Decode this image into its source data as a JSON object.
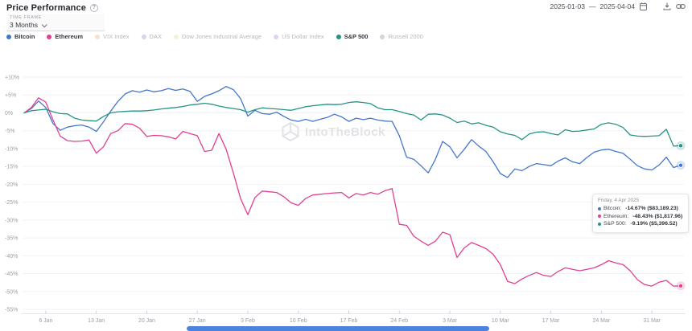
{
  "header": {
    "title": "Price Performance",
    "info_glyph": "?",
    "date_start": "2025-01-03",
    "date_separator": "—",
    "date_end": "2025-04-04"
  },
  "timeframe": {
    "label": "TIME FRAME",
    "value": "3 Months"
  },
  "legend": [
    {
      "name": "Bitcoin",
      "color": "#4477cc",
      "active": true
    },
    {
      "name": "Ethereum",
      "color": "#e23f92",
      "active": true
    },
    {
      "name": "VIX Index",
      "color": "#f0c9a0",
      "active": false
    },
    {
      "name": "DAX",
      "color": "#beb3d2",
      "active": false
    },
    {
      "name": "Dow Jones Industrial Average",
      "color": "#ece5ab",
      "active": false
    },
    {
      "name": "US Dollar Index",
      "color": "#cbadda",
      "active": false
    },
    {
      "name": "S&P 500",
      "color": "#269485",
      "active": true,
      "bold": true
    },
    {
      "name": "Russell 2000",
      "color": "#b3afbb",
      "active": false
    }
  ],
  "watermark": {
    "text": "IntoTheBlock"
  },
  "tooltip": {
    "title": "Friday, 4 Apr 2025",
    "rows": [
      {
        "name": "Bitcoin",
        "value": "-14.67% ($83,189.23)",
        "color": "#4477cc"
      },
      {
        "name": "Ethereum",
        "value": "-48.43% ($1,817.96)",
        "color": "#e23f92"
      },
      {
        "name": "S&P 500",
        "value": "-9.19% ($5,396.52)",
        "color": "#269485"
      }
    ]
  },
  "chart_data": {
    "type": "line",
    "title": "Price Performance",
    "x_unit": "days since 2025-01-03",
    "x_max": 91,
    "ylim": [
      -55,
      10
    ],
    "y_step": 5,
    "grid": true,
    "x_ticks": [
      {
        "label": "6 Jan",
        "day": 3
      },
      {
        "label": "13 Jan",
        "day": 10
      },
      {
        "label": "20 Jan",
        "day": 17
      },
      {
        "label": "27 Jan",
        "day": 24
      },
      {
        "label": "3 Feb",
        "day": 31
      },
      {
        "label": "10 Feb",
        "day": 38
      },
      {
        "label": "17 Feb",
        "day": 45
      },
      {
        "label": "24 Feb",
        "day": 52
      },
      {
        "label": "3 Mar",
        "day": 59
      },
      {
        "label": "10 Mar",
        "day": 66
      },
      {
        "label": "17 Mar",
        "day": 73
      },
      {
        "label": "24 Mar",
        "day": 80
      },
      {
        "label": "31 Mar",
        "day": 87
      }
    ],
    "series": [
      {
        "name": "Bitcoin",
        "color": "#4477cc",
        "values": [
          0,
          1.2,
          3.3,
          1.5,
          -3.0,
          -4.9,
          -4.0,
          -3.6,
          -3.4,
          -4.0,
          -5.2,
          -2.5,
          0.5,
          3.2,
          5.3,
          6.2,
          5.8,
          6.4,
          5.9,
          6.2,
          6.8,
          6.3,
          6.7,
          6.0,
          3.2,
          4.6,
          5.3,
          6.2,
          7.4,
          6.5,
          4.0,
          -0.9,
          0.7,
          -0.2,
          -0.4,
          0.2,
          -1.0,
          -2.0,
          -2.4,
          -1.8,
          -2.4,
          -1.8,
          -1.3,
          -0.4,
          -1.1,
          -2.4,
          -1.5,
          -1.9,
          -1.5,
          -2.0,
          -2.3,
          -2.4,
          -6.4,
          -12.4,
          -13.0,
          -14.8,
          -16.8,
          -13.0,
          -8.0,
          -9.5,
          -12.6,
          -10.2,
          -7.5,
          -9.3,
          -10.8,
          -13.7,
          -17.0,
          -18.1,
          -15.7,
          -16.2,
          -15.0,
          -14.2,
          -14.5,
          -14.8,
          -13.5,
          -12.6,
          -13.7,
          -14.2,
          -12.5,
          -11.0,
          -10.4,
          -10.2,
          -10.8,
          -11.3,
          -13.0,
          -14.8,
          -15.7,
          -16.0,
          -14.6,
          -12.4,
          -15.3,
          -14.67
        ]
      },
      {
        "name": "Ethereum",
        "color": "#e23f92",
        "values": [
          0,
          1.5,
          4.2,
          3.0,
          -2.0,
          -6.5,
          -7.8,
          -8.0,
          -7.9,
          -7.6,
          -11.3,
          -9.5,
          -5.8,
          -5.0,
          -3.0,
          -3.2,
          -4.3,
          -6.6,
          -6.3,
          -6.4,
          -6.7,
          -7.3,
          -5.2,
          -5.8,
          -6.4,
          -10.8,
          -10.5,
          -5.8,
          -10.2,
          -16.8,
          -24.0,
          -28.5,
          -23.7,
          -21.9,
          -22.1,
          -22.3,
          -23.5,
          -25.2,
          -25.9,
          -24.0,
          -23.0,
          -22.8,
          -22.6,
          -22.4,
          -22.3,
          -23.8,
          -22.6,
          -23.0,
          -22.3,
          -22.8,
          -21.8,
          -21.2,
          -31.2,
          -31.5,
          -34.5,
          -35.9,
          -37.1,
          -35.9,
          -33.4,
          -34.1,
          -40.5,
          -37.8,
          -36.3,
          -37.1,
          -38.0,
          -39.6,
          -42.5,
          -47.2,
          -47.8,
          -46.5,
          -45.5,
          -44.7,
          -45.5,
          -45.8,
          -44.4,
          -43.4,
          -43.8,
          -44.2,
          -43.8,
          -43.4,
          -42.5,
          -41.4,
          -42.0,
          -42.5,
          -44.2,
          -46.7,
          -48.1,
          -48.5,
          -47.4,
          -46.9,
          -48.5,
          -48.43
        ]
      },
      {
        "name": "S&P 500",
        "color": "#269485",
        "values": [
          0,
          0.6,
          0.8,
          1.0,
          0.3,
          -0.2,
          -0.3,
          -1.5,
          -2.0,
          -2.2,
          -2.3,
          -1.0,
          0.0,
          0.3,
          0.4,
          0.5,
          0.5,
          0.6,
          0.8,
          1.1,
          1.3,
          1.5,
          1.8,
          2.2,
          2.4,
          2.7,
          2.4,
          1.9,
          1.5,
          1.2,
          0.9,
          0.2,
          0.9,
          1.4,
          1.2,
          1.1,
          0.9,
          0.7,
          1.2,
          1.7,
          2.0,
          2.2,
          2.4,
          2.3,
          2.4,
          2.9,
          3.1,
          2.9,
          2.6,
          1.4,
          0.9,
          0.9,
          0.4,
          -0.2,
          -0.6,
          -2.0,
          -0.4,
          -0.3,
          -0.6,
          -1.5,
          -2.7,
          -2.3,
          -3.1,
          -2.8,
          -3.5,
          -4.0,
          -5.3,
          -5.9,
          -6.3,
          -7.5,
          -5.9,
          -5.4,
          -5.3,
          -5.8,
          -6.2,
          -4.7,
          -5.2,
          -5.1,
          -4.8,
          -4.5,
          -3.2,
          -2.8,
          -3.2,
          -4.1,
          -6.2,
          -6.5,
          -6.6,
          -6.5,
          -6.4,
          -4.6,
          -9.3,
          -9.19
        ]
      }
    ]
  }
}
